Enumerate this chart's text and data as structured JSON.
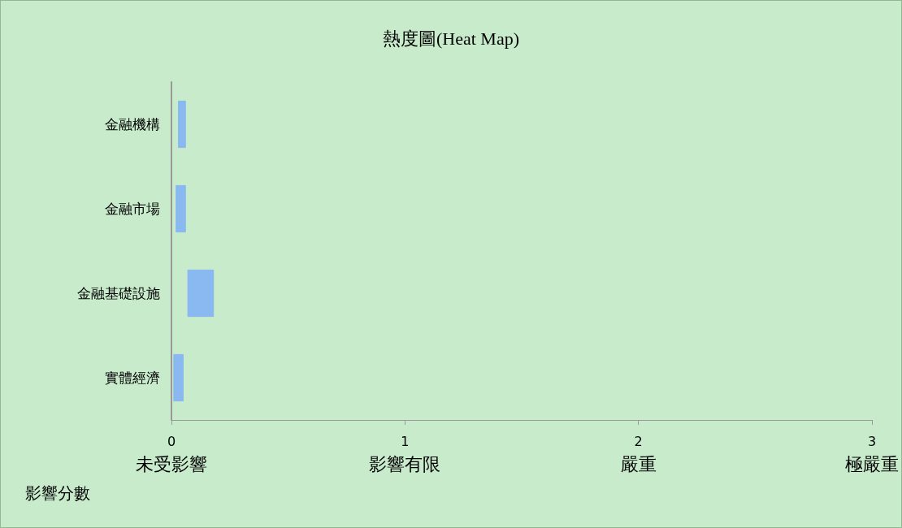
{
  "chart_data": {
    "type": "bar",
    "title": "熱度圖(Heat Map)",
    "xlabel": "影響分數",
    "orientation": "horizontal",
    "categories": [
      "金融機構",
      "金融市場",
      "金融基礎設施",
      "實體經濟"
    ],
    "base": [
      0.03,
      0.02,
      0.07,
      0.01
    ],
    "values": [
      0.03,
      0.04,
      0.11,
      0.04
    ],
    "color": "#8ab8f0",
    "xlim": [
      0,
      3
    ],
    "xticks": [
      {
        "value": 0,
        "label": "0\n未受影響"
      },
      {
        "value": 1,
        "label": "1\n影響有限"
      },
      {
        "value": 2,
        "label": "2\n嚴重"
      },
      {
        "value": 3,
        "label": "3\n極嚴重"
      }
    ],
    "grid": false
  }
}
